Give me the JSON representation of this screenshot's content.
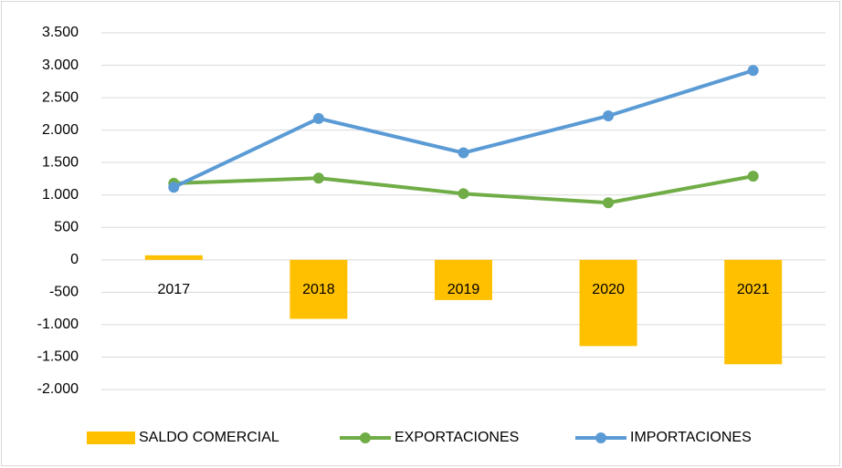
{
  "chart_data": {
    "type": "combo",
    "categories": [
      "2017",
      "2018",
      "2019",
      "2020",
      "2021"
    ],
    "series": [
      {
        "name": "SALDO COMERCIAL",
        "type": "bar",
        "color": "#FFC000",
        "values": [
          70,
          -910,
          -620,
          -1330,
          -1610
        ]
      },
      {
        "name": "EXPORTACIONES",
        "type": "line",
        "color": "#70AD47",
        "values": [
          1180,
          1260,
          1020,
          880,
          1290
        ]
      },
      {
        "name": "IMPORTACIONES",
        "type": "line",
        "color": "#5B9BD5",
        "values": [
          1120,
          2180,
          1650,
          2220,
          2920
        ]
      }
    ],
    "ylim": [
      -2000,
      3500
    ],
    "yticks": [
      {
        "value": -2000,
        "label": "-2.000"
      },
      {
        "value": -1500,
        "label": "-1.500"
      },
      {
        "value": -1000,
        "label": "-1.000"
      },
      -500,
      0,
      500,
      {
        "value": 1000,
        "label": "1.000"
      },
      {
        "value": 1500,
        "label": "1.500"
      },
      {
        "value": 2000,
        "label": "2.000"
      },
      {
        "value": 2500,
        "label": "2.500"
      },
      {
        "value": 3000,
        "label": "3.000"
      },
      {
        "value": 3500,
        "label": "3.500"
      }
    ],
    "grid": true,
    "legend": "bottom"
  }
}
